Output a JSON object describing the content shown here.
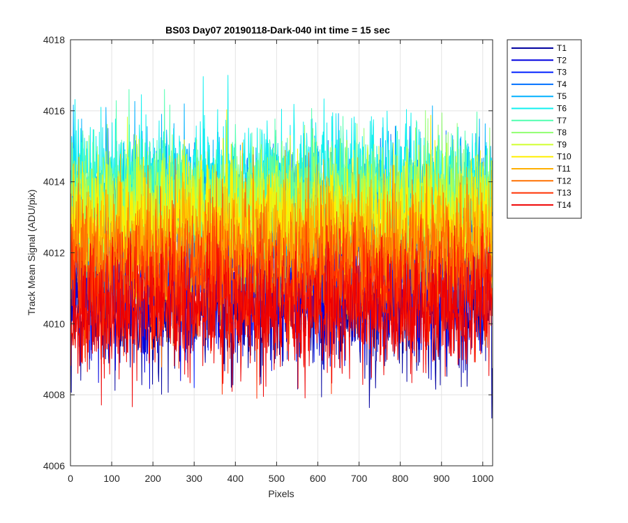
{
  "chart_data": {
    "type": "line",
    "title": "BS03 Day07 20190118-Dark-040 int time = 15 sec",
    "xlabel": "Pixels",
    "ylabel": "Track Mean Signal (ADU/pix)",
    "xlim": [
      0,
      1024
    ],
    "ylim": [
      4006,
      4018
    ],
    "x_ticks": [
      0,
      100,
      200,
      300,
      400,
      500,
      600,
      700,
      800,
      900,
      1000
    ],
    "x_tick_labels": [
      "0",
      "100",
      "200",
      "300",
      "400",
      "500",
      "600",
      "700",
      "800",
      "900",
      "1000"
    ],
    "y_ticks": [
      4006,
      4008,
      4010,
      4012,
      4014,
      4016,
      4018
    ],
    "y_tick_labels": [
      "4006",
      "4008",
      "4010",
      "4012",
      "4014",
      "4016",
      "4018"
    ],
    "grid": true,
    "legend_position": "outside-top-right",
    "n_points": 1024,
    "series": [
      {
        "name": "T1",
        "color": "#00009f",
        "mean": 4010.6,
        "std": 1.0,
        "min": 4007.3,
        "max": 4015.0
      },
      {
        "name": "T2",
        "color": "#0000df",
        "mean": 4011.0,
        "std": 1.0,
        "min": 4007.8,
        "max": 4016.2
      },
      {
        "name": "T3",
        "color": "#0020ff",
        "mean": 4011.5,
        "std": 1.0,
        "min": 4008.2,
        "max": 4016.1
      },
      {
        "name": "T4",
        "color": "#0070ff",
        "mean": 4013.1,
        "std": 0.9,
        "min": 4009.6,
        "max": 4017.8
      },
      {
        "name": "T5",
        "color": "#00b0ff",
        "mean": 4013.6,
        "std": 0.9,
        "min": 4010.4,
        "max": 4017.5
      },
      {
        "name": "T6",
        "color": "#10f0ef",
        "mean": 4014.0,
        "std": 0.9,
        "min": 4010.5,
        "max": 4017.0
      },
      {
        "name": "T7",
        "color": "#50ffaf",
        "mean": 4013.5,
        "std": 0.9,
        "min": 4010.5,
        "max": 4016.6
      },
      {
        "name": "T8",
        "color": "#90ff6f",
        "mean": 4013.3,
        "std": 0.9,
        "min": 4010.2,
        "max": 4016.6
      },
      {
        "name": "T9",
        "color": "#d0ff2f",
        "mean": 4013.0,
        "std": 0.9,
        "min": 4010.0,
        "max": 4016.4
      },
      {
        "name": "T10",
        "color": "#ffef00",
        "mean": 4012.8,
        "std": 0.9,
        "min": 4009.5,
        "max": 4016.2
      },
      {
        "name": "T11",
        "color": "#ffaf00",
        "mean": 4012.3,
        "std": 0.9,
        "min": 4008.1,
        "max": 4016.0
      },
      {
        "name": "T12",
        "color": "#ff7000",
        "mean": 4011.8,
        "std": 0.9,
        "min": 4008.6,
        "max": 4015.8
      },
      {
        "name": "T13",
        "color": "#ff3000",
        "mean": 4011.0,
        "std": 0.9,
        "min": 4007.9,
        "max": 4015.5
      },
      {
        "name": "T14",
        "color": "#ef0000",
        "mean": 4010.4,
        "std": 0.9,
        "min": 4006.6,
        "max": 4014.5
      }
    ]
  }
}
